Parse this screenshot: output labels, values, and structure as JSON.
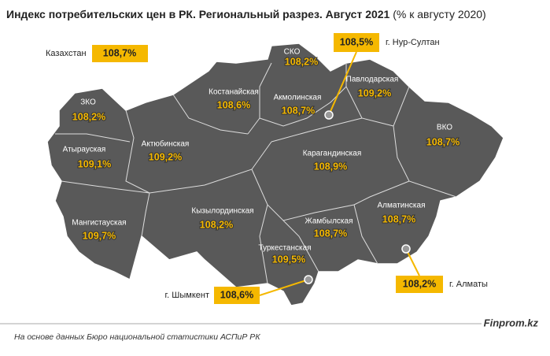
{
  "title": "Индекс потребительских цен в РК. Региональный разрез. Август 2021",
  "subtitle": "(% к августу 2020)",
  "national": {
    "name": "Казахстан",
    "value": "108,7%"
  },
  "regions": [
    {
      "name": "СКО",
      "value": "108,2%"
    },
    {
      "name": "Костанайская",
      "value": "108,6%"
    },
    {
      "name": "Акмолинская",
      "value": "108,7%"
    },
    {
      "name": "Павлодарская",
      "value": "109,2%"
    },
    {
      "name": "ЗКО",
      "value": "108,2%"
    },
    {
      "name": "ВКО",
      "value": "108,7%"
    },
    {
      "name": "Атырауская",
      "value": "109,1%"
    },
    {
      "name": "Актюбинская",
      "value": "109,2%"
    },
    {
      "name": "Карагандинская",
      "value": "108,9%"
    },
    {
      "name": "Мангистауская",
      "value": "109,7%"
    },
    {
      "name": "Кызылординская",
      "value": "108,2%"
    },
    {
      "name": "Жамбылская",
      "value": "108,7%"
    },
    {
      "name": "Алматинская",
      "value": "108,7%"
    },
    {
      "name": "Туркестанская",
      "value": "109,5%"
    }
  ],
  "cities": [
    {
      "name": "г. Нур-Султан",
      "value": "108,5%"
    },
    {
      "name": "г. Шымкент",
      "value": "108,6%"
    },
    {
      "name": "г. Алматы",
      "value": "108,2%"
    }
  ],
  "footer": {
    "source": "На основе данных Бюро национальной статистики АСПиР РК",
    "brand": "Finprom.kz"
  }
}
